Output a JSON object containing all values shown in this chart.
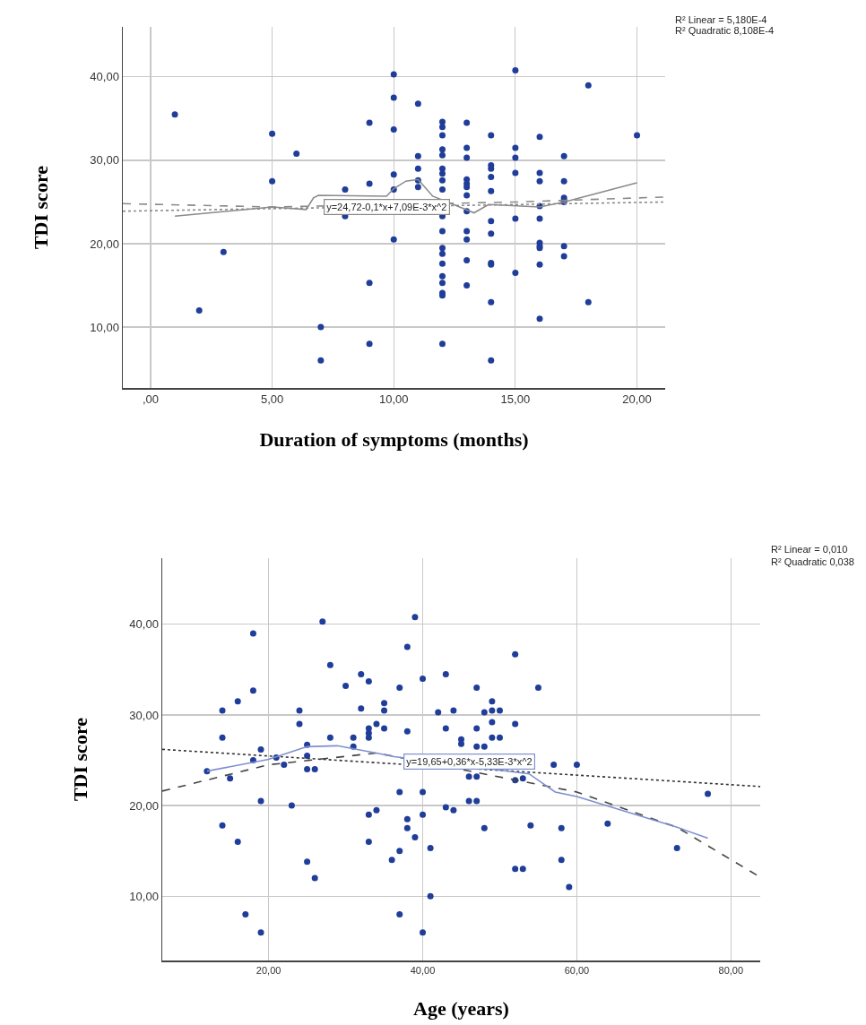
{
  "chart_data": [
    {
      "type": "scatter",
      "xlabel": "Duration of symptoms (months)",
      "ylabel": "TDI score",
      "grid": true,
      "xlim": [
        -1.14,
        21.16
      ],
      "ylim": [
        2.7,
        46
      ],
      "xticks": [
        {
          "value": 0,
          "label": ",00"
        },
        {
          "value": 5,
          "label": "5,00"
        },
        {
          "value": 10,
          "label": "10,00"
        },
        {
          "value": 15,
          "label": "15,00"
        },
        {
          "value": 20,
          "label": "20,00"
        }
      ],
      "yticks": [
        {
          "value": 10,
          "label": "10,00"
        },
        {
          "value": 20,
          "label": "20,00"
        },
        {
          "value": 30,
          "label": "30,00"
        },
        {
          "value": 40,
          "label": "40,00"
        }
      ],
      "annotations": [
        "R² Linear = 5,180E-4",
        "R² Quadratic 8,108E-4",
        {
          "text": "y=24,72-0,1*x+7,09E-3*x^2",
          "x": 9.7,
          "y": 24.4
        }
      ],
      "series": [
        {
          "marker": "circle",
          "color": "#1f3d99",
          "x": [
            1,
            2,
            3,
            5,
            5,
            6,
            7,
            7,
            8,
            8,
            9,
            9,
            9,
            9,
            10,
            10,
            10,
            10,
            10,
            10,
            11,
            11,
            11,
            11,
            11,
            12,
            12,
            12,
            12,
            12,
            12,
            12,
            12,
            12,
            12,
            12,
            12,
            12,
            12,
            12,
            12,
            12,
            12,
            12,
            13,
            13,
            13,
            13,
            13,
            13,
            13,
            13,
            13,
            13,
            13,
            13,
            14,
            14,
            14,
            14,
            14,
            14,
            14,
            14,
            14,
            14,
            14,
            15,
            15,
            15,
            15,
            15,
            15,
            16,
            16,
            16,
            16,
            16,
            16,
            16,
            16,
            16,
            16,
            17,
            17,
            17,
            17,
            17,
            17,
            17,
            18,
            18,
            20
          ],
          "values": [
            35.5,
            12.0,
            19.0,
            33.2,
            27.5,
            30.8,
            10.0,
            6.0,
            26.5,
            23.3,
            34.5,
            27.2,
            15.3,
            8.0,
            40.3,
            37.5,
            33.7,
            28.3,
            26.5,
            20.5,
            36.8,
            30.5,
            29.0,
            27.6,
            26.8,
            34.6,
            34.0,
            33.0,
            31.3,
            30.6,
            29.0,
            28.4,
            27.6,
            26.5,
            23.3,
            21.5,
            19.5,
            18.8,
            17.6,
            16.1,
            15.3,
            14.1,
            13.8,
            8.0,
            34.5,
            31.5,
            30.3,
            27.7,
            27.2,
            26.8,
            25.8,
            23.9,
            21.5,
            20.5,
            18.0,
            15.0,
            33.0,
            29.4,
            29.0,
            28.0,
            26.3,
            22.7,
            21.2,
            17.7,
            17.5,
            13.0,
            6.0,
            40.8,
            31.5,
            30.3,
            28.5,
            23.0,
            16.5,
            32.8,
            28.5,
            27.5,
            24.5,
            23.0,
            20.1,
            19.7,
            19.5,
            17.5,
            11.0,
            30.5,
            27.5,
            25.5,
            25.2,
            25.0,
            19.7,
            18.5,
            39.0,
            13.0,
            33.0
          ]
        },
        {
          "type": "line",
          "color": "#8a8a8a",
          "line_style": "dotted",
          "x": [
            -1.14,
            21.16
          ],
          "values": [
            23.9,
            25.0
          ]
        },
        {
          "type": "line",
          "color": "#8a8a8a",
          "line_style": "dashed",
          "x": [
            -1.14,
            5,
            15,
            21.16
          ],
          "values": [
            24.8,
            24.4,
            25.0,
            25.6
          ]
        },
        {
          "type": "line",
          "color": "#8a8a8a",
          "line_style": "solid",
          "x": [
            1,
            5,
            6.4,
            6.7,
            6.9,
            9.7,
            10,
            10.5,
            11,
            11.6,
            13.3,
            13.9,
            16,
            17,
            20
          ],
          "values": [
            23.3,
            24.4,
            24.1,
            25.5,
            25.8,
            25.7,
            26.6,
            27.5,
            27.7,
            25.7,
            23.7,
            24.7,
            24.4,
            25.0,
            27.3
          ]
        }
      ]
    },
    {
      "type": "scatter",
      "xlabel": "Age (years)",
      "ylabel": "TDI score",
      "grid": true,
      "xlim": [
        6.2,
        83.8
      ],
      "ylim": [
        2.9,
        47.3
      ],
      "xticks": [
        {
          "value": 20,
          "label": "20,00"
        },
        {
          "value": 40,
          "label": "40,00"
        },
        {
          "value": 60,
          "label": "60,00"
        },
        {
          "value": 80,
          "label": "80,00"
        }
      ],
      "yticks": [
        {
          "value": 10,
          "label": "10,00"
        },
        {
          "value": 20,
          "label": "20,00"
        },
        {
          "value": 30,
          "label": "30,00"
        },
        {
          "value": 40,
          "label": "40,00"
        }
      ],
      "annotations": [
        "R² Linear = 0,010",
        "R² Quadratic 0,038",
        {
          "text": "y=19,65+0,36*x-5,33E-3*x^2",
          "x": 46.0,
          "y": 24.9
        }
      ],
      "series": [
        {
          "marker": "circle",
          "color": "#1f3d99",
          "x": [
            12,
            14,
            14,
            14,
            15,
            16,
            16,
            17,
            18,
            18,
            18,
            19,
            19,
            19,
            21,
            22,
            23,
            24,
            24,
            25,
            25,
            25,
            25,
            26,
            26,
            27,
            28,
            28,
            30,
            31,
            31,
            32,
            32,
            33,
            33,
            33,
            33,
            33,
            33,
            34,
            34,
            35,
            35,
            35,
            36,
            37,
            37,
            37,
            37,
            38,
            38,
            38,
            38,
            39,
            39,
            40,
            40,
            40,
            40,
            41,
            41,
            42,
            43,
            43,
            43,
            44,
            44,
            45,
            45,
            46,
            46,
            47,
            47,
            47,
            47,
            47,
            48,
            48,
            48,
            49,
            49,
            49,
            49,
            50,
            50,
            52,
            52,
            52,
            52,
            53,
            53,
            54,
            55,
            57,
            58,
            58,
            59,
            60,
            64,
            73,
            77
          ],
          "values": [
            23.8,
            30.5,
            27.5,
            17.8,
            23.0,
            31.5,
            16.0,
            8.0,
            39.0,
            32.7,
            25.0,
            26.2,
            20.5,
            6.0,
            25.3,
            24.5,
            20.0,
            30.5,
            29.0,
            26.7,
            25.5,
            24.0,
            13.8,
            24.0,
            12.0,
            40.3,
            35.5,
            27.5,
            33.2,
            27.5,
            26.5,
            34.5,
            30.7,
            33.7,
            28.5,
            28.0,
            27.5,
            19.0,
            16.0,
            29.0,
            19.5,
            31.3,
            30.5,
            28.5,
            14.0,
            33.0,
            21.5,
            15.0,
            8.0,
            37.5,
            28.2,
            18.5,
            17.5,
            40.8,
            16.5,
            34.0,
            21.5,
            19.0,
            6.0,
            15.3,
            10.0,
            30.3,
            34.5,
            28.5,
            19.8,
            30.5,
            19.5,
            27.3,
            26.8,
            23.2,
            20.5,
            33.0,
            28.5,
            26.5,
            23.2,
            20.5,
            30.3,
            26.5,
            17.5,
            31.5,
            30.5,
            29.2,
            27.5,
            30.5,
            27.5,
            36.7,
            29.0,
            22.8,
            13.0,
            23.0,
            13.0,
            17.8,
            33.0,
            24.5,
            17.5,
            14.0,
            11.0,
            24.5,
            18.0,
            15.3,
            21.3
          ]
        },
        {
          "type": "line",
          "color": "#333333",
          "line_style": "dotted",
          "x": [
            6.2,
            83.8
          ],
          "values": [
            26.2,
            22.1
          ]
        },
        {
          "type": "line",
          "color": "#444444",
          "line_style": "dashed",
          "x": [
            6.2,
            20,
            34,
            60,
            73,
            83.8
          ],
          "values": [
            21.6,
            24.5,
            25.8,
            21.5,
            17.6,
            12.1
          ]
        },
        {
          "type": "line",
          "color": "#7f8fcf",
          "line_style": "solid",
          "x": [
            12,
            20,
            25,
            28.9,
            34,
            36.3,
            53.8,
            57.2,
            60,
            73,
            77
          ],
          "values": [
            23.8,
            25.1,
            26.5,
            26.6,
            25.8,
            25.4,
            23.5,
            21.5,
            21.0,
            17.6,
            16.4
          ]
        }
      ]
    }
  ]
}
